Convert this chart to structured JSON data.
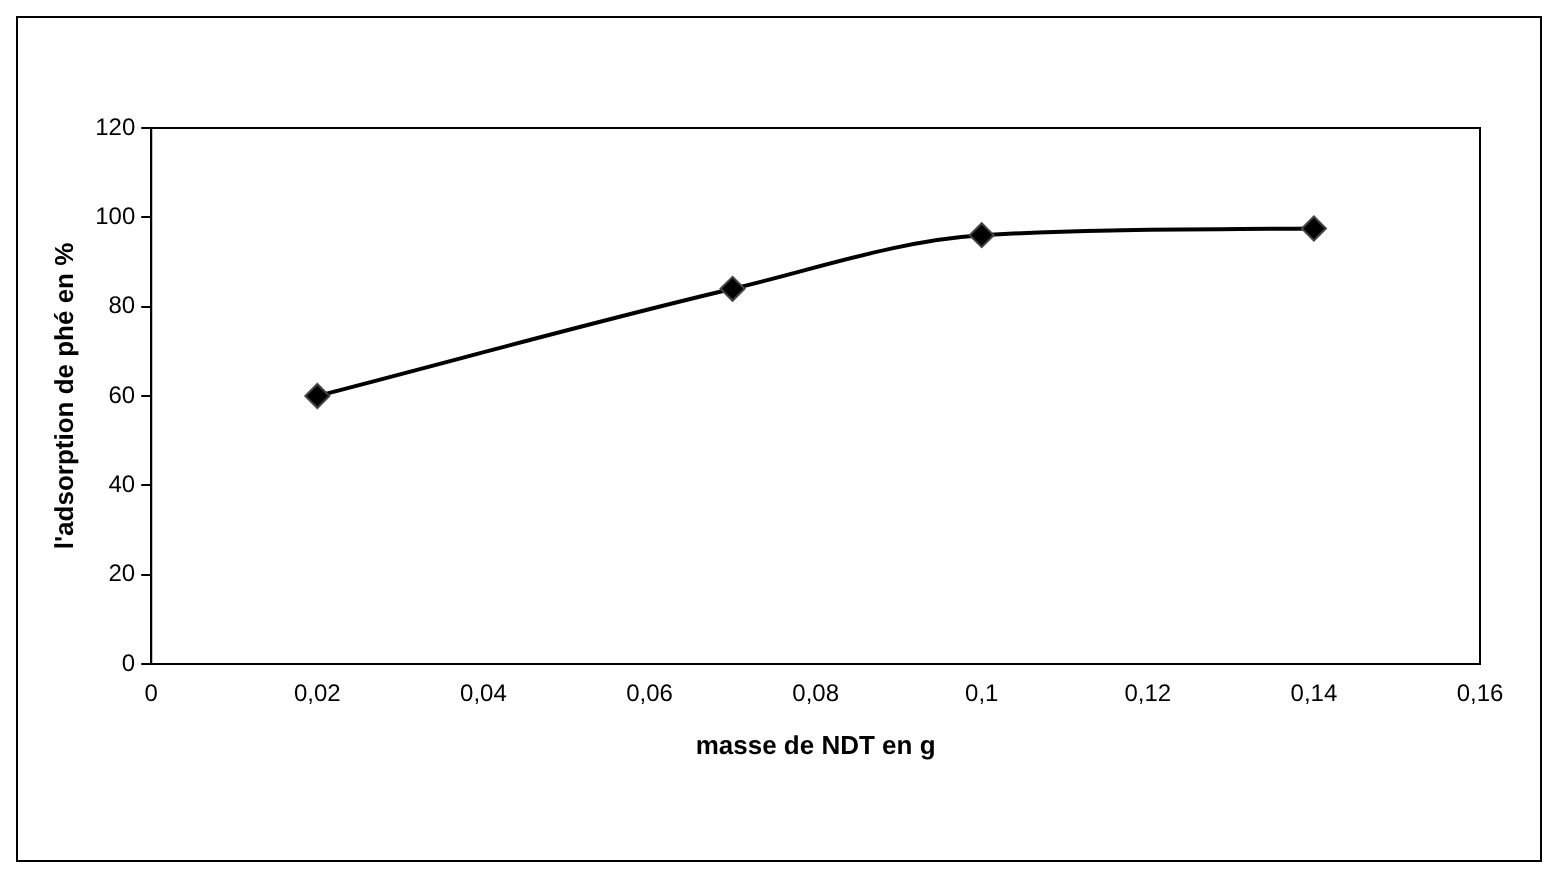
{
  "chart_data": {
    "type": "line",
    "xlabel": "masse de NDT en g",
    "ylabel": "l'adsorption de phé en %",
    "x": [
      0.02,
      0.07,
      0.1,
      0.14
    ],
    "series": [
      {
        "color": "#000000",
        "values": [
          60,
          84,
          96,
          97.5
        ]
      }
    ],
    "xlim": [
      0,
      0.16
    ],
    "xticks": [
      0,
      {
        "value": 0.02,
        "label": "0,02"
      },
      {
        "value": 0.04,
        "label": "0,04"
      },
      {
        "value": 0.06,
        "label": "0,06"
      },
      {
        "value": 0.08,
        "label": "0,08"
      },
      {
        "value": 0.1,
        "label": "0,1"
      },
      {
        "value": 0.12,
        "label": "0,12"
      },
      {
        "value": 0.14,
        "label": "0,14"
      },
      {
        "value": 0.16,
        "label": "0,16"
      }
    ],
    "ylim": [
      0,
      120
    ],
    "yticks": [
      0,
      20,
      40,
      60,
      80,
      100,
      120
    ],
    "grid": false,
    "legend": false,
    "marker": "diamond",
    "line_style": "solid"
  }
}
